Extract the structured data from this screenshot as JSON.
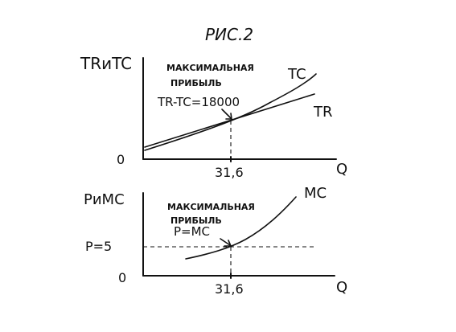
{
  "figure": {
    "title": "РИС.2"
  },
  "top_panel": {
    "y_axis_label": "TRиTC",
    "x_axis_label": "Q",
    "origin_label": "0",
    "x_tick_label": "31,6",
    "annotation_line1": "МАКСИМАЛЬНАЯ",
    "annotation_line2": "ПРИБЫЛЬ",
    "annotation_formula": "TR-TC=18000",
    "curve_labels": {
      "tc": "TC",
      "tr": "TR"
    }
  },
  "bottom_panel": {
    "y_axis_label": "PиMC",
    "x_axis_label": "Q",
    "origin_label": "0",
    "x_tick_label": "31,6",
    "y_tick_label": "P=5",
    "annotation_line1": "МАКСИМАЛЬНАЯ",
    "annotation_line2": "ПРИБЫЛЬ",
    "annotation_formula": "P=MC",
    "curve_labels": {
      "mc": "MC"
    }
  },
  "values": {
    "q_at_max_profit": 31.6,
    "price": 5,
    "max_profit": 18000
  }
}
